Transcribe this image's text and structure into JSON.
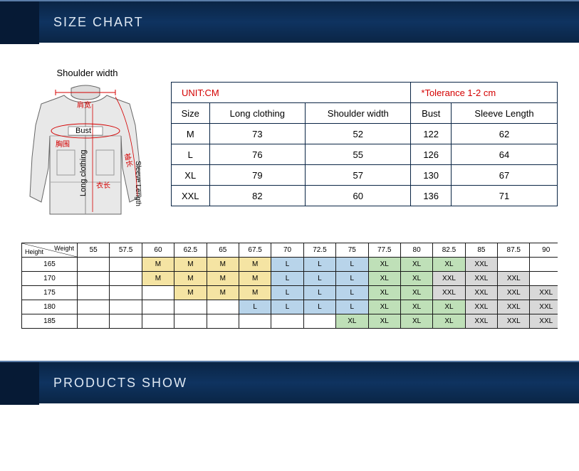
{
  "banners": {
    "size_chart": "SIZE CHART",
    "products_show": "PRODUCTS SHOW"
  },
  "diagram": {
    "title": "Shoulder width",
    "labels": {
      "shoulder_cn": "肩宽",
      "bust_en": "Bust",
      "bust_cn": "胸围",
      "sleeve_en": "Sleeve Length",
      "sleeve_cn": "袖长",
      "long_en": "Long clothing",
      "long_cn": "衣长"
    }
  },
  "size_table": {
    "unit": "UNIT:CM",
    "tolerance": "*Tolerance 1-2 cm",
    "cols": [
      "Size",
      "Long clothing",
      "Shoulder width",
      "Bust",
      "Sleeve Length"
    ],
    "rows": [
      [
        "M",
        "73",
        "52",
        "122",
        "62"
      ],
      [
        "L",
        "76",
        "55",
        "126",
        "64"
      ],
      [
        "XL",
        "79",
        "57",
        "130",
        "67"
      ],
      [
        "XXL",
        "82",
        "60",
        "136",
        "71"
      ]
    ]
  },
  "recommend": {
    "weight_label": "Weight",
    "height_label": "Height",
    "weights": [
      "55",
      "57.5",
      "60",
      "62.5",
      "65",
      "67.5",
      "70",
      "72.5",
      "75",
      "77.5",
      "80",
      "82.5",
      "85",
      "87.5",
      "90"
    ],
    "heights": [
      "165",
      "170",
      "175",
      "180",
      "185"
    ],
    "grid": [
      [
        "",
        "",
        "M",
        "M",
        "M",
        "M",
        "L",
        "L",
        "L",
        "XL",
        "XL",
        "XL",
        "XXL",
        "",
        ""
      ],
      [
        "",
        "",
        "M",
        "M",
        "M",
        "M",
        "L",
        "L",
        "L",
        "XL",
        "XL",
        "XXL",
        "XXL",
        "XXL",
        ""
      ],
      [
        "",
        "",
        "",
        "M",
        "M",
        "M",
        "L",
        "L",
        "L",
        "XL",
        "XL",
        "XXL",
        "XXL",
        "XXL",
        "XXL"
      ],
      [
        "",
        "",
        "",
        "",
        "",
        "L",
        "L",
        "L",
        "L",
        "XL",
        "XL",
        "XL",
        "XXL",
        "XXL",
        "XXL"
      ],
      [
        "",
        "",
        "",
        "",
        "",
        "",
        "",
        "",
        "XL",
        "XL",
        "XL",
        "XL",
        "XXL",
        "XXL",
        "XXL"
      ]
    ],
    "colors": {
      "M": "c-M",
      "L": "c-L",
      "XL": "c-XL",
      "XXL": "c-XXL",
      "": ""
    }
  }
}
